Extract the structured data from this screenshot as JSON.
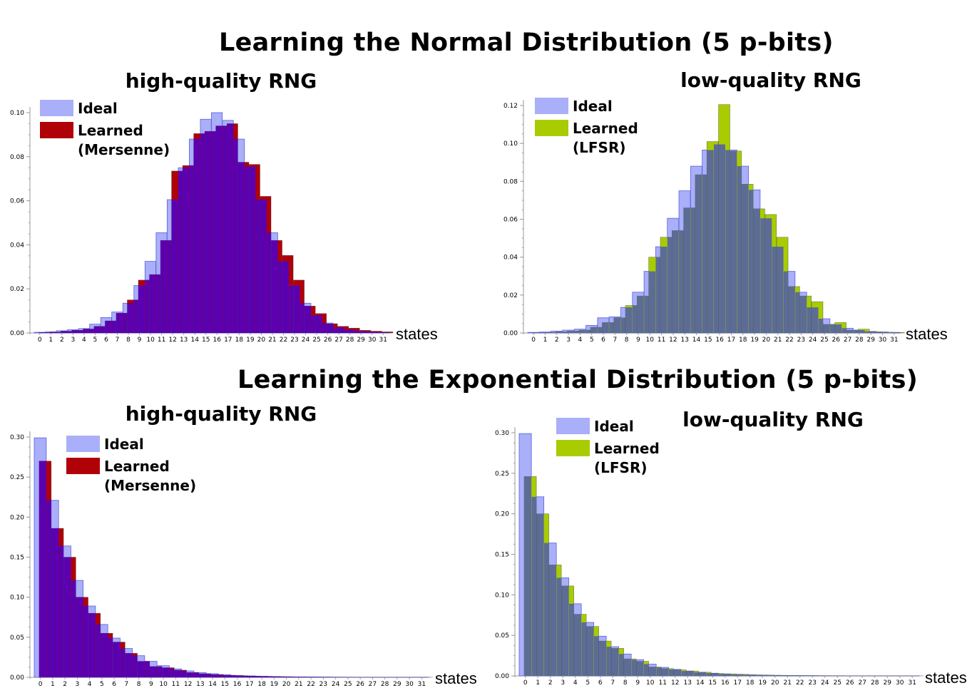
{
  "section_titles": {
    "normal": "Learning the Normal Distribution (5 p-bits)",
    "exponential": "Learning the Exponential Distribution (5 p-bits)"
  },
  "colors": {
    "ideal_fill": "#a9aff8",
    "ideal_edge": "#5a60e0",
    "mersenne_fill": "#b00008",
    "lfsr_fill": "#a8cc00",
    "overlap_mersenne": "#5a00b0",
    "overlap_lfsr": "#5c6c94",
    "axis": "#999999",
    "text": "#000000"
  },
  "chart_data": [
    {
      "type": "bar",
      "title": "high-quality RNG",
      "xlabel": "states",
      "ylabel": "",
      "ylim": [
        0,
        0.1
      ],
      "yticks": [
        0.0,
        0.02,
        0.04,
        0.06,
        0.08,
        0.1
      ],
      "ytick_labels": [
        "0.00",
        "0.02",
        "0.04",
        "0.06",
        "0.08",
        "0.10"
      ],
      "categories": [
        "0",
        "1",
        "2",
        "3",
        "4",
        "5",
        "6",
        "7",
        "8",
        "9",
        "10",
        "11",
        "12",
        "13",
        "14",
        "15",
        "16",
        "17",
        "18",
        "19",
        "20",
        "21",
        "22",
        "23",
        "24",
        "25",
        "26",
        "27",
        "28",
        "29",
        "30",
        "31"
      ],
      "legend": [
        "Ideal",
        "Learned",
        "(Mersenne)"
      ],
      "series": [
        {
          "name": "Ideal",
          "values": [
            0.0003,
            0.0005,
            0.001,
            0.0015,
            0.002,
            0.004,
            0.007,
            0.0095,
            0.0135,
            0.0215,
            0.0325,
            0.0455,
            0.0605,
            0.075,
            0.088,
            0.097,
            0.1,
            0.0965,
            0.088,
            0.0755,
            0.0605,
            0.0455,
            0.0325,
            0.0215,
            0.0135,
            0.008,
            0.0045,
            0.0025,
            0.0015,
            0.0008,
            0.0005,
            0.0003
          ]
        },
        {
          "name": "Learned (Mersenne)",
          "values": [
            0.0002,
            0.0004,
            0.0008,
            0.0012,
            0.0018,
            0.003,
            0.0055,
            0.009,
            0.015,
            0.024,
            0.0265,
            0.042,
            0.0735,
            0.076,
            0.0905,
            0.0915,
            0.094,
            0.095,
            0.0775,
            0.0765,
            0.062,
            0.042,
            0.0352,
            0.024,
            0.0122,
            0.0088,
            0.0042,
            0.003,
            0.0022,
            0.0012,
            0.0008,
            0.0005
          ]
        }
      ]
    },
    {
      "type": "bar",
      "title": "low-quality RNG",
      "xlabel": "states",
      "ylabel": "",
      "ylim": [
        0,
        0.12
      ],
      "yticks": [
        0.0,
        0.02,
        0.04,
        0.06,
        0.08,
        0.1,
        0.12
      ],
      "ytick_labels": [
        "0.00",
        "0.02",
        "0.04",
        "0.06",
        "0.08",
        "0.10",
        "0.12"
      ],
      "categories": [
        "0",
        "1",
        "2",
        "3",
        "4",
        "5",
        "6",
        "7",
        "8",
        "9",
        "10",
        "11",
        "12",
        "13",
        "14",
        "15",
        "16",
        "17",
        "18",
        "19",
        "20",
        "21",
        "22",
        "23",
        "24",
        "25",
        "26",
        "27",
        "28",
        "29",
        "30",
        "31"
      ],
      "legend": [
        "Ideal",
        "Learned",
        "(LFSR)"
      ],
      "series": [
        {
          "name": "Ideal",
          "values": [
            0.0003,
            0.0005,
            0.001,
            0.0015,
            0.002,
            0.004,
            0.008,
            0.0085,
            0.0135,
            0.0215,
            0.0325,
            0.0455,
            0.0605,
            0.075,
            0.088,
            0.0965,
            0.0995,
            0.0965,
            0.088,
            0.0755,
            0.0605,
            0.0455,
            0.0325,
            0.0215,
            0.0135,
            0.0075,
            0.0045,
            0.0025,
            0.0015,
            0.0008,
            0.0005,
            0.0003
          ]
        },
        {
          "name": "Learned (LFSR)",
          "values": [
            0.0002,
            0.0003,
            0.0006,
            0.001,
            0.0015,
            0.003,
            0.0055,
            0.008,
            0.0145,
            0.0195,
            0.04,
            0.0505,
            0.054,
            0.066,
            0.0835,
            0.101,
            0.1205,
            0.096,
            0.0785,
            0.0655,
            0.0625,
            0.0505,
            0.0245,
            0.0195,
            0.0165,
            0.0045,
            0.0055,
            0.0015,
            0.002,
            0.0006,
            0.0004,
            0.0003
          ]
        }
      ]
    },
    {
      "type": "bar",
      "title": "high-quality RNG",
      "xlabel": "states",
      "ylabel": "",
      "ylim": [
        0,
        0.3
      ],
      "yticks": [
        0.0,
        0.05,
        0.1,
        0.15,
        0.2,
        0.25,
        0.3
      ],
      "ytick_labels": [
        "0.00",
        "0.05",
        "0.10",
        "0.15",
        "0.20",
        "0.25",
        "0.30"
      ],
      "categories": [
        "0",
        "1",
        "2",
        "3",
        "4",
        "5",
        "6",
        "7",
        "8",
        "9",
        "10",
        "11",
        "12",
        "13",
        "14",
        "15",
        "16",
        "17",
        "18",
        "19",
        "20",
        "21",
        "22",
        "23",
        "24",
        "25",
        "26",
        "27",
        "28",
        "29",
        "30",
        "31"
      ],
      "legend": [
        "Ideal",
        "Learned",
        "(Mersenne)"
      ],
      "series": [
        {
          "name": "Ideal",
          "values": [
            0.299,
            0.221,
            0.164,
            0.121,
            0.089,
            0.066,
            0.049,
            0.036,
            0.027,
            0.02,
            0.0145,
            0.0105,
            0.008,
            0.006,
            0.0045,
            0.0033,
            0.0024,
            0.0018,
            0.0013,
            0.001,
            0.0007,
            0.0005,
            0.0004,
            0.0003,
            0.0002,
            0.00015,
            0.0001,
            0.0001,
            0.0001,
            0.0001,
            0.0001,
            0.0001
          ]
        },
        {
          "name": "Learned (Mersenne)",
          "values": [
            0.27,
            0.186,
            0.15,
            0.1,
            0.08,
            0.055,
            0.044,
            0.03,
            0.02,
            0.0135,
            0.012,
            0.009,
            0.006,
            0.0045,
            0.0035,
            0.0025,
            0.002,
            0.0015,
            0.0012,
            0.0009,
            0.0006,
            0.0005,
            0.0004,
            0.0003,
            0.0002,
            0.00015,
            0.0001,
            0.0001,
            0.0001,
            0.0001,
            0.0001,
            0.0001
          ]
        }
      ]
    },
    {
      "type": "bar",
      "title": "low-quality RNG",
      "xlabel": "states",
      "ylabel": "",
      "ylim": [
        0,
        0.3
      ],
      "yticks": [
        0.0,
        0.05,
        0.1,
        0.15,
        0.2,
        0.25,
        0.3
      ],
      "ytick_labels": [
        "0.00",
        "0.05",
        "0.10",
        "0.15",
        "0.20",
        "0.25",
        "0.30"
      ],
      "categories": [
        "0",
        "1",
        "2",
        "3",
        "4",
        "5",
        "6",
        "7",
        "8",
        "9",
        "10",
        "11",
        "12",
        "13",
        "14",
        "15",
        "16",
        "17",
        "18",
        "19",
        "20",
        "21",
        "22",
        "23",
        "24",
        "25",
        "26",
        "27",
        "28",
        "29",
        "30",
        "31"
      ],
      "legend": [
        "Ideal",
        "Learned",
        "(LFSR)"
      ],
      "series": [
        {
          "name": "Ideal",
          "values": [
            0.299,
            0.221,
            0.164,
            0.121,
            0.089,
            0.066,
            0.049,
            0.036,
            0.027,
            0.02,
            0.0145,
            0.0105,
            0.008,
            0.006,
            0.0045,
            0.0033,
            0.0024,
            0.0018,
            0.0013,
            0.001,
            0.0007,
            0.0005,
            0.0004,
            0.0003,
            0.0002,
            0.00015,
            0.0001,
            0.0001,
            0.0001,
            0.0001,
            0.0001,
            0.0001
          ]
        },
        {
          "name": "Learned (LFSR)",
          "values": [
            0.246,
            0.2,
            0.137,
            0.111,
            0.076,
            0.061,
            0.043,
            0.034,
            0.021,
            0.018,
            0.011,
            0.009,
            0.0075,
            0.006,
            0.0045,
            0.003,
            0.0025,
            0.002,
            0.0013,
            0.001,
            0.0007,
            0.0005,
            0.0004,
            0.0003,
            0.0002,
            0.00015,
            0.0001,
            0.0001,
            0.0001,
            0.0001,
            0.0001,
            0.0001
          ]
        }
      ]
    }
  ]
}
